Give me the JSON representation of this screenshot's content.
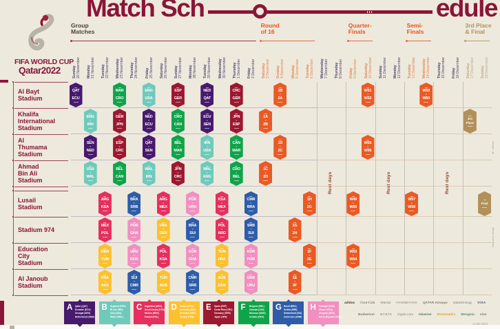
{
  "title": {
    "left": "Match Sch",
    "right": "edule"
  },
  "logo": {
    "line1": "FIFA WORLD CUP",
    "line2": "Qatar2022"
  },
  "rest_days_label": "Rest days",
  "notes": {
    "winner": "W = Winner",
    "subject": "Subject to change"
  },
  "footer_date": "11.08.2022",
  "phases": [
    {
      "id": "group",
      "lines": "Group\nMatches",
      "color": "#473f37",
      "line_color": "#8a1538",
      "col_start": 1,
      "col_end": 13
    },
    {
      "id": "r16",
      "lines": "Round\nof 16",
      "color": "#e8541f",
      "line_color": "#e8541f",
      "col_start": 14,
      "col_end": 17
    },
    {
      "id": "qf",
      "lines": "Quarter-\nFinals",
      "color": "#e8541f",
      "line_color": "#e8541f",
      "col_start": 20,
      "col_end": 21
    },
    {
      "id": "sf",
      "lines": "Semi-\nFinals",
      "color": "#e8541f",
      "line_color": "#e8541f",
      "col_start": 24,
      "col_end": 25
    },
    {
      "id": "final",
      "lines": "3rd Place\n& Final",
      "color": "#b2925c",
      "line_color": "#b2925c",
      "col_start": 28,
      "col_end": 29
    }
  ],
  "groups": {
    "A": {
      "color": "#471a6d",
      "teams": [
        "Qatar (QAT)",
        "Ecuador (ECU)",
        "Senegal (SEN)",
        "Netherlands (NED)"
      ]
    },
    "B": {
      "color": "#6fcabb",
      "teams": [
        "England (ENG)",
        "IR Iran (IRN)",
        "USA (USA)",
        "Wales (WAL)"
      ]
    },
    "C": {
      "color": "#e62f5e",
      "teams": [
        "Argentina (ARG)",
        "Saudi Arabia (KSA)",
        "Mexico (MEX)",
        "Poland (POL)"
      ]
    },
    "D": {
      "color": "#fbc12f",
      "teams": [
        "France (FRA)",
        "Australia (AUS)",
        "Denmark (DEN)",
        "Tunisia (TUN)"
      ]
    },
    "E": {
      "color": "#9c1830",
      "teams": [
        "Spain (ESP)",
        "Costa Rica (CRC)",
        "Germany (GER)",
        "Japan (JPN)"
      ]
    },
    "F": {
      "color": "#10a44a",
      "teams": [
        "Belgium (BEL)",
        "Canada (CAN)",
        "Morocco (MAR)",
        "Croatia (CRO)"
      ]
    },
    "G": {
      "color": "#2e5ca8",
      "teams": [
        "Brazil (BRA)",
        "Serbia (SRB)",
        "Switzerland (SUI)",
        "Cameroon (CMR)"
      ]
    },
    "H": {
      "color": "#f18fc0",
      "teams": [
        "Portugal (POR)",
        "Ghana (GHA)",
        "Uruguay (URU)",
        "Korea Republic (KOR)"
      ]
    }
  },
  "knockout_colors": {
    "KO": "#ea5a24",
    "FINAL": "#b1905a"
  },
  "date_colors": {
    "group": "#4b3f68",
    "rest": "#4b3f68",
    "r16": "#e1854f",
    "qf": "#e1854f",
    "sf": "#e1854f",
    "final": "#bfa97e"
  },
  "chart_data": {
    "type": "table",
    "title": "FIFA World Cup Qatar 2022 Match Schedule",
    "rows": [
      {
        "name": "Al Bayt Stadium",
        "lines": [
          "Al Bayt",
          "Stadium"
        ]
      },
      {
        "name": "Khalifa International Stadium",
        "lines": [
          "Khalifa",
          "International",
          "Stadium"
        ]
      },
      {
        "name": "Al Thumama Stadium",
        "lines": [
          "Al",
          "Thumama",
          "Stadium"
        ]
      },
      {
        "name": "Ahmad Bin Ali Stadium",
        "lines": [
          "Ahmad",
          "Bin Ali",
          "Stadium"
        ]
      },
      {
        "name": "Lusail Stadium",
        "lines": [
          "Lusail",
          "Stadium"
        ]
      },
      {
        "name": "Stadium 974",
        "lines": [
          "Stadium 974"
        ]
      },
      {
        "name": "Education City Stadium",
        "lines": [
          "Education",
          "City",
          "Stadium"
        ]
      },
      {
        "name": "Al Janoub Stadium",
        "lines": [
          "Al Janoub",
          "Stadium"
        ]
      }
    ],
    "columns": [
      {
        "day": "Sunday",
        "date": "20 November",
        "phase": "group"
      },
      {
        "day": "Monday",
        "date": "21 November",
        "phase": "group"
      },
      {
        "day": "Tuesday",
        "date": "22 November",
        "phase": "group"
      },
      {
        "day": "Wednesday",
        "date": "23 November",
        "phase": "group"
      },
      {
        "day": "Thursday",
        "date": "24 November",
        "phase": "group"
      },
      {
        "day": "Friday",
        "date": "25 November",
        "phase": "group"
      },
      {
        "day": "Saturday",
        "date": "26 November",
        "phase": "group"
      },
      {
        "day": "Sunday",
        "date": "27 November",
        "phase": "group"
      },
      {
        "day": "Monday",
        "date": "28 November",
        "phase": "group"
      },
      {
        "day": "Tuesday",
        "date": "29 November",
        "phase": "group"
      },
      {
        "day": "Wednesday",
        "date": "30 November",
        "phase": "group"
      },
      {
        "day": "Thursday",
        "date": "1 December",
        "phase": "group"
      },
      {
        "day": "Friday",
        "date": "2 December",
        "phase": "group"
      },
      {
        "day": "Saturday",
        "date": "3 December",
        "phase": "r16"
      },
      {
        "day": "Sunday",
        "date": "4 December",
        "phase": "r16"
      },
      {
        "day": "Monday",
        "date": "5 December",
        "phase": "r16"
      },
      {
        "day": "Tuesday",
        "date": "6 December",
        "phase": "r16"
      },
      {
        "day": "Wednesday",
        "date": "7 December",
        "phase": "rest"
      },
      {
        "day": "Thursday",
        "date": "8 December",
        "phase": "rest"
      },
      {
        "day": "Friday",
        "date": "9 December",
        "phase": "qf"
      },
      {
        "day": "Saturday",
        "date": "10 December",
        "phase": "qf"
      },
      {
        "day": "Sunday",
        "date": "11 December",
        "phase": "rest"
      },
      {
        "day": "Monday",
        "date": "12 December",
        "phase": "rest"
      },
      {
        "day": "Tuesday",
        "date": "13 December",
        "phase": "sf"
      },
      {
        "day": "Wednesday",
        "date": "14 December",
        "phase": "sf"
      },
      {
        "day": "Thursday",
        "date": "15 December",
        "phase": "rest"
      },
      {
        "day": "Friday",
        "date": "16 December",
        "phase": "rest"
      },
      {
        "day": "Saturday",
        "date": "17 December",
        "phase": "final"
      },
      {
        "day": "Sunday",
        "date": "18 December",
        "phase": "final"
      }
    ],
    "matches": [
      {
        "r": 0,
        "c": 1,
        "home": "QAT",
        "away": "ECU",
        "group": "A"
      },
      {
        "r": 0,
        "c": 4,
        "home": "MAR",
        "away": "CRO",
        "group": "F"
      },
      {
        "r": 0,
        "c": 6,
        "home": "ENG",
        "away": "USA",
        "group": "B"
      },
      {
        "r": 0,
        "c": 8,
        "home": "ESP",
        "away": "GER",
        "group": "E"
      },
      {
        "r": 0,
        "c": 10,
        "home": "NED",
        "away": "QAT",
        "group": "A"
      },
      {
        "r": 0,
        "c": 12,
        "home": "CRC",
        "away": "GER",
        "group": "E"
      },
      {
        "r": 0,
        "c": 15,
        "home": "1B",
        "away": "2A",
        "group": "KO"
      },
      {
        "r": 0,
        "c": 21,
        "home": "W51",
        "away": "W52",
        "group": "KO"
      },
      {
        "r": 0,
        "c": 25,
        "home": "W59",
        "away": "W60",
        "group": "KO"
      },
      {
        "r": 1,
        "c": 2,
        "home": "ENG",
        "away": "IRN",
        "group": "B"
      },
      {
        "r": 1,
        "c": 4,
        "home": "GER",
        "away": "JPN",
        "group": "E"
      },
      {
        "r": 1,
        "c": 6,
        "home": "NED",
        "away": "ECU",
        "group": "A"
      },
      {
        "r": 1,
        "c": 8,
        "home": "CRO",
        "away": "CAN",
        "group": "F"
      },
      {
        "r": 1,
        "c": 10,
        "home": "ECU",
        "away": "SEN",
        "group": "A"
      },
      {
        "r": 1,
        "c": 12,
        "home": "JPN",
        "away": "ESP",
        "group": "E"
      },
      {
        "r": 1,
        "c": 14,
        "home": "1A",
        "away": "2B",
        "group": "KO"
      },
      {
        "r": 1,
        "c": 28,
        "label": "3rd Place",
        "group": "FINAL"
      },
      {
        "r": 2,
        "c": 2,
        "home": "SEN",
        "away": "NED",
        "group": "A"
      },
      {
        "r": 2,
        "c": 4,
        "home": "ESP",
        "away": "CRC",
        "group": "E"
      },
      {
        "r": 2,
        "c": 6,
        "home": "QAT",
        "away": "SEN",
        "group": "A"
      },
      {
        "r": 2,
        "c": 8,
        "home": "BEL",
        "away": "MAR",
        "group": "F"
      },
      {
        "r": 2,
        "c": 10,
        "home": "IRN",
        "away": "USA",
        "group": "B"
      },
      {
        "r": 2,
        "c": 12,
        "home": "CAN",
        "away": "MAR",
        "group": "F"
      },
      {
        "r": 2,
        "c": 15,
        "home": "1D",
        "away": "2C",
        "group": "KO"
      },
      {
        "r": 2,
        "c": 21,
        "home": "W55",
        "away": "W56",
        "group": "KO"
      },
      {
        "r": 3,
        "c": 2,
        "home": "USA",
        "away": "WAL",
        "group": "B"
      },
      {
        "r": 3,
        "c": 4,
        "home": "BEL",
        "away": "CAN",
        "group": "F"
      },
      {
        "r": 3,
        "c": 6,
        "home": "WAL",
        "away": "IRN",
        "group": "B"
      },
      {
        "r": 3,
        "c": 8,
        "home": "JPN",
        "away": "CRC",
        "group": "E"
      },
      {
        "r": 3,
        "c": 10,
        "home": "WAL",
        "away": "ENG",
        "group": "B"
      },
      {
        "r": 3,
        "c": 12,
        "home": "CRO",
        "away": "BEL",
        "group": "F"
      },
      {
        "r": 3,
        "c": 14,
        "home": "1C",
        "away": "2D",
        "group": "KO"
      },
      {
        "r": 4,
        "c": 3,
        "home": "ARG",
        "away": "KSA",
        "group": "C"
      },
      {
        "r": 4,
        "c": 5,
        "home": "BRA",
        "away": "SRB",
        "group": "G"
      },
      {
        "r": 4,
        "c": 7,
        "home": "ARG",
        "away": "MEX",
        "group": "C"
      },
      {
        "r": 4,
        "c": 9,
        "home": "POR",
        "away": "URU",
        "group": "H"
      },
      {
        "r": 4,
        "c": 11,
        "home": "KSA",
        "away": "MEX",
        "group": "C"
      },
      {
        "r": 4,
        "c": 13,
        "home": "CMR",
        "away": "BRA",
        "group": "G"
      },
      {
        "r": 4,
        "c": 17,
        "home": "1H",
        "away": "2G",
        "group": "KO"
      },
      {
        "r": 4,
        "c": 20,
        "home": "W49",
        "away": "W50",
        "group": "KO"
      },
      {
        "r": 4,
        "c": 24,
        "home": "W57",
        "away": "W58",
        "group": "KO"
      },
      {
        "r": 4,
        "c": 29,
        "label": "Final",
        "group": "FINAL"
      },
      {
        "r": 5,
        "c": 3,
        "home": "MEX",
        "away": "POL",
        "group": "C"
      },
      {
        "r": 5,
        "c": 5,
        "home": "POR",
        "away": "GHA",
        "group": "H"
      },
      {
        "r": 5,
        "c": 7,
        "home": "FRA",
        "away": "DEN",
        "group": "D"
      },
      {
        "r": 5,
        "c": 9,
        "home": "BRA",
        "away": "SUI",
        "group": "G"
      },
      {
        "r": 5,
        "c": 11,
        "home": "POL",
        "away": "ARG",
        "group": "C"
      },
      {
        "r": 5,
        "c": 13,
        "home": "SRB",
        "away": "SUI",
        "group": "G"
      },
      {
        "r": 5,
        "c": 16,
        "home": "1G",
        "away": "2H",
        "group": "KO"
      },
      {
        "r": 6,
        "c": 3,
        "home": "DEN",
        "away": "TUN",
        "group": "D"
      },
      {
        "r": 6,
        "c": 5,
        "home": "URU",
        "away": "KOR",
        "group": "H"
      },
      {
        "r": 6,
        "c": 7,
        "home": "POL",
        "away": "KSA",
        "group": "C"
      },
      {
        "r": 6,
        "c": 9,
        "home": "KOR",
        "away": "GHA",
        "group": "H"
      },
      {
        "r": 6,
        "c": 11,
        "home": "TUN",
        "away": "FRA",
        "group": "D"
      },
      {
        "r": 6,
        "c": 13,
        "home": "KOR",
        "away": "POR",
        "group": "H"
      },
      {
        "r": 6,
        "c": 17,
        "home": "1F",
        "away": "2E",
        "group": "KO"
      },
      {
        "r": 6,
        "c": 20,
        "home": "W53",
        "away": "W54",
        "group": "KO"
      },
      {
        "r": 7,
        "c": 3,
        "home": "FRA",
        "away": "AUS",
        "group": "D"
      },
      {
        "r": 7,
        "c": 5,
        "home": "SUI",
        "away": "CMR",
        "group": "G"
      },
      {
        "r": 7,
        "c": 7,
        "home": "TUN",
        "away": "AUS",
        "group": "D"
      },
      {
        "r": 7,
        "c": 9,
        "home": "CMR",
        "away": "SRB",
        "group": "G"
      },
      {
        "r": 7,
        "c": 11,
        "home": "AUS",
        "away": "DEN",
        "group": "D"
      },
      {
        "r": 7,
        "c": 13,
        "home": "GHA",
        "away": "URU",
        "group": "H"
      },
      {
        "r": 7,
        "c": 16,
        "home": "1E",
        "away": "2F",
        "group": "KO"
      }
    ]
  },
  "sponsors": {
    "row1": [
      "adidas",
      "Coca-Cola",
      "Wanda",
      "HYUNDAI KIA",
      "QATAR Airways",
      "QatarEnergy",
      "VISA"
    ],
    "row2": [
      "Budweiser",
      "BYJU'S",
      "crypto.com",
      "Hisense",
      "McDonald's",
      "Mengniu",
      "vivo"
    ]
  }
}
